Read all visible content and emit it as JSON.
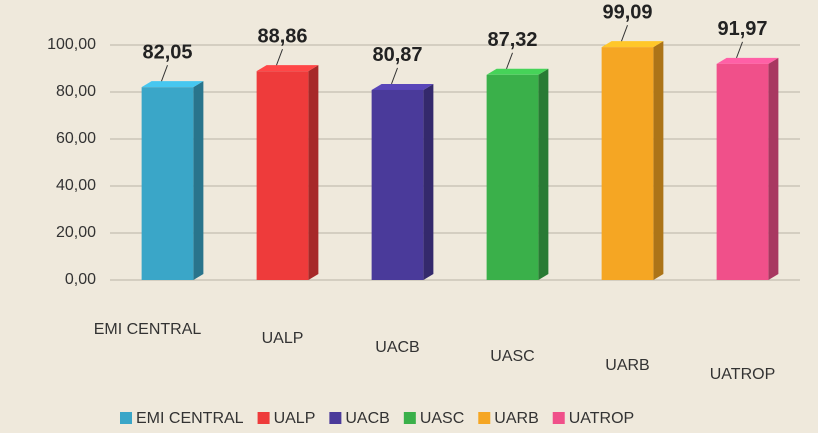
{
  "chart_data": {
    "type": "bar3d",
    "categories": [
      "EMI CENTRAL",
      "UALP",
      "UACB",
      "UASC",
      "UARB",
      "UATROP"
    ],
    "values": [
      82.05,
      88.86,
      80.87,
      87.32,
      99.09,
      91.97
    ],
    "value_labels": [
      "82,05",
      "88,86",
      "80,87",
      "87,32",
      "99,09",
      "91,97"
    ],
    "colors": [
      "#3aa6c8",
      "#ee3b3b",
      "#4a3a9a",
      "#3ab04a",
      "#f5a623",
      "#f0508a"
    ],
    "ylim": [
      0,
      100
    ],
    "yticks": [
      {
        "value": 0,
        "label": "0,00"
      },
      {
        "value": 20,
        "label": "20,00"
      },
      {
        "value": 40,
        "label": "40,00"
      },
      {
        "value": 60,
        "label": "60,00"
      },
      {
        "value": 80,
        "label": "80,00"
      },
      {
        "value": 100,
        "label": "100,00"
      }
    ],
    "grid": true
  }
}
